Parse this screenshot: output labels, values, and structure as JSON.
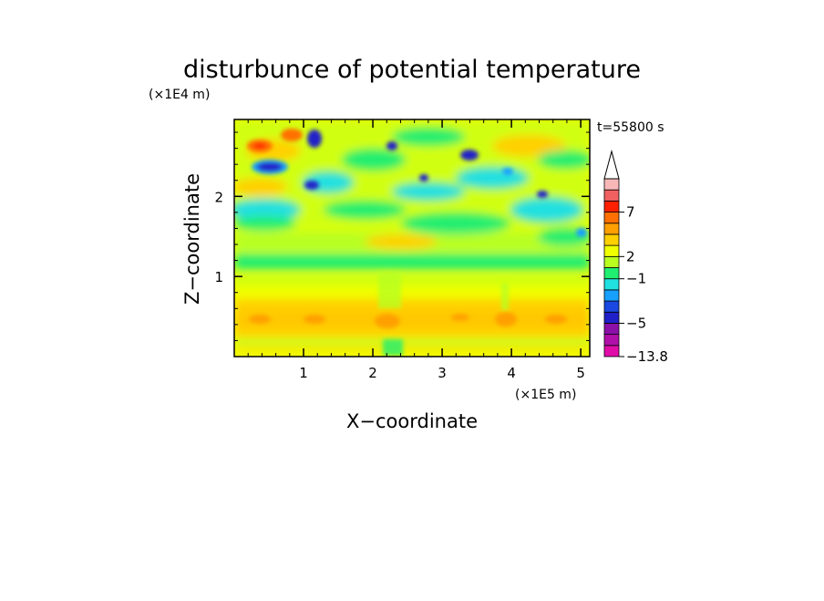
{
  "chart_data": {
    "type": "heatmap",
    "title": "disturbunce of potential temperature",
    "time_label": "t=55800 s",
    "xlabel": "X−coordinate",
    "ylabel": "Z−coordinate",
    "x_unit": "(×1E5 m)",
    "y_unit": "(×1E4 m)",
    "xlim": [
      0,
      5.13
    ],
    "ylim": [
      0,
      2.96
    ],
    "x_ticks": [
      {
        "value": 1,
        "label": "1"
      },
      {
        "value": 2,
        "label": "2"
      },
      {
        "value": 3,
        "label": "3"
      },
      {
        "value": 4,
        "label": "4"
      },
      {
        "value": 5,
        "label": "5"
      }
    ],
    "y_ticks": [
      {
        "value": 1,
        "label": "1"
      },
      {
        "value": 2,
        "label": "2"
      }
    ],
    "colorbar": {
      "colors": [
        "#e00ca8",
        "#b010a8",
        "#8a10a8",
        "#2020c8",
        "#1a48e0",
        "#18a0ff",
        "#20e0e0",
        "#20ee70",
        "#b8ff20",
        "#f0ff00",
        "#ffd000",
        "#ffa000",
        "#ff7000",
        "#ff2000",
        "#f06060",
        "#f8b8b8"
      ],
      "tick_labels": [
        {
          "index": 0,
          "label": "−13.8"
        },
        {
          "index": 3,
          "label": "−5"
        },
        {
          "index": 7,
          "label": "−1"
        },
        {
          "index": 9,
          "label": "2"
        },
        {
          "index": 13,
          "label": "7"
        }
      ]
    }
  }
}
